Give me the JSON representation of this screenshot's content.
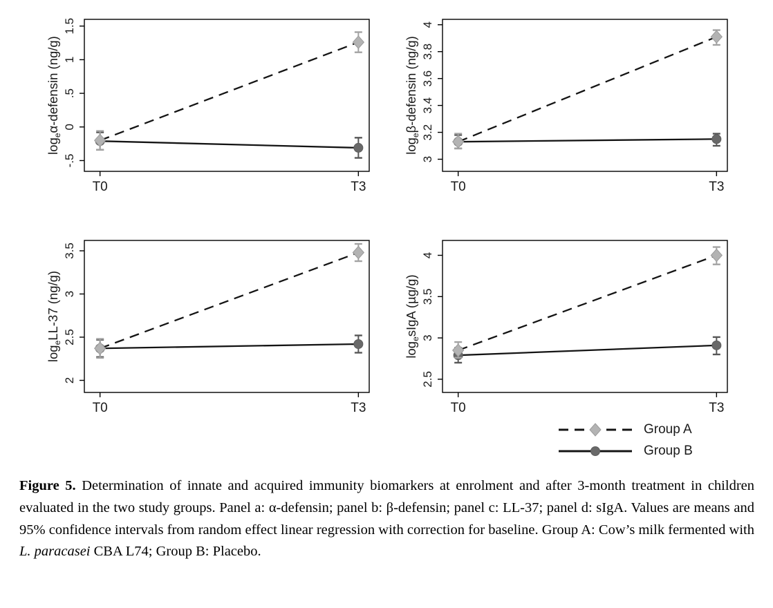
{
  "figure": {
    "x_categories": [
      "T0",
      "T3"
    ],
    "legend": {
      "position": "bottom-right",
      "items": [
        {
          "label": "Group A",
          "marker": "diamond",
          "line_style": "dashed",
          "marker_color": "#b3b3b3",
          "marker_edge": "#9b9b9b",
          "error_color": "#a3a3a3",
          "line_color": "#141414"
        },
        {
          "label": "Group B",
          "marker": "circle",
          "line_style": "solid",
          "marker_color": "#696969",
          "marker_edge": "#5e5e5e",
          "error_color": "#575757",
          "line_color": "#141414"
        }
      ]
    },
    "colors": {
      "axis": "#000000",
      "background": "#ffffff"
    }
  },
  "chart_data": [
    {
      "panel": "a",
      "type": "line",
      "title": "",
      "xlabel": "",
      "grid": false,
      "ylabel": "loge α-defensin (ng/g)",
      "ylabel_parts": {
        "prefix": "log",
        "sub": "e",
        "rest": "α-defensin (ng/g)"
      },
      "x": [
        "T0",
        "T3"
      ],
      "yticks": [
        -0.5,
        0,
        0.5,
        1,
        1.5
      ],
      "ytick_labels": [
        "-.5",
        "0",
        ".5",
        "1",
        "1.5"
      ],
      "ylim": [
        -0.66,
        1.6
      ],
      "series": [
        {
          "name": "Group A",
          "values": [
            -0.2,
            1.26
          ],
          "ci_low": [
            -0.34,
            1.11
          ],
          "ci_high": [
            -0.06,
            1.41
          ]
        },
        {
          "name": "Group B",
          "values": [
            -0.21,
            -0.31
          ],
          "ci_low": [
            -0.34,
            -0.46
          ],
          "ci_high": [
            -0.08,
            -0.16
          ]
        }
      ]
    },
    {
      "panel": "b",
      "type": "line",
      "title": "",
      "xlabel": "",
      "grid": false,
      "ylabel": "loge β-defensin (ng/g)",
      "ylabel_parts": {
        "prefix": "log",
        "sub": "e",
        "rest": "β-defensin (ng/g)"
      },
      "x": [
        "T0",
        "T3"
      ],
      "yticks": [
        3,
        3.2,
        3.4,
        3.6,
        3.8,
        4
      ],
      "ytick_labels": [
        "3",
        "3.2",
        "3.4",
        "3.6",
        "3.8",
        "4"
      ],
      "ylim": [
        2.91,
        4.04
      ],
      "series": [
        {
          "name": "Group A",
          "values": [
            3.13,
            3.91
          ],
          "ci_low": [
            3.08,
            3.85
          ],
          "ci_high": [
            3.19,
            3.96
          ]
        },
        {
          "name": "Group B",
          "values": [
            3.13,
            3.15
          ],
          "ci_low": [
            3.08,
            3.1
          ],
          "ci_high": [
            3.18,
            3.19
          ]
        }
      ]
    },
    {
      "panel": "c",
      "type": "line",
      "title": "",
      "xlabel": "",
      "grid": false,
      "ylabel": "loge LL-37 (ng/g)",
      "ylabel_parts": {
        "prefix": "log",
        "sub": "e",
        "rest": "LL-37 (ng/g)"
      },
      "x": [
        "T0",
        "T3"
      ],
      "yticks": [
        2,
        2.5,
        3,
        3.5
      ],
      "ytick_labels": [
        "2",
        "2.5",
        "3",
        "3.5"
      ],
      "ylim": [
        1.86,
        3.62
      ],
      "series": [
        {
          "name": "Group A",
          "values": [
            2.37,
            3.48
          ],
          "ci_low": [
            2.26,
            3.38
          ],
          "ci_high": [
            2.48,
            3.58
          ]
        },
        {
          "name": "Group B",
          "values": [
            2.37,
            2.42
          ],
          "ci_low": [
            2.27,
            2.32
          ],
          "ci_high": [
            2.47,
            2.52
          ]
        }
      ]
    },
    {
      "panel": "d",
      "type": "line",
      "title": "",
      "xlabel": "",
      "grid": false,
      "ylabel": "loge sIgA (µg/g)",
      "ylabel_parts": {
        "prefix": "log",
        "sub": "e",
        "rest": "sIgA (µg/g)"
      },
      "x": [
        "T0",
        "T3"
      ],
      "yticks": [
        2.5,
        3,
        3.5,
        4
      ],
      "ytick_labels": [
        "2.5",
        "3",
        "3.5",
        "4"
      ],
      "ylim": [
        2.34,
        4.18
      ],
      "series": [
        {
          "name": "Group A",
          "values": [
            2.85,
            4.0
          ],
          "ci_low": [
            2.76,
            3.89
          ],
          "ci_high": [
            2.95,
            4.1
          ]
        },
        {
          "name": "Group B",
          "values": [
            2.79,
            2.91
          ],
          "ci_low": [
            2.7,
            2.8
          ],
          "ci_high": [
            2.88,
            3.01
          ]
        }
      ]
    }
  ],
  "caption": {
    "segments": [
      {
        "text": "Figure 5.",
        "bold": true
      },
      {
        "text": " Determination of innate and acquired immunity biomarkers at enrolment and after 3-month treatment in children evaluated in the two study groups. Panel a: α-defensin; panel b: β-defensin; panel c: LL-37; panel d: sIgA. Values are means and 95% confidence intervals from random effect linear regression with correction for baseline. Group A: Cow’s milk fermented with "
      },
      {
        "text": "L. paracasei",
        "italic": true
      },
      {
        "text": " CBA L74; Group B: Placebo."
      }
    ]
  }
}
